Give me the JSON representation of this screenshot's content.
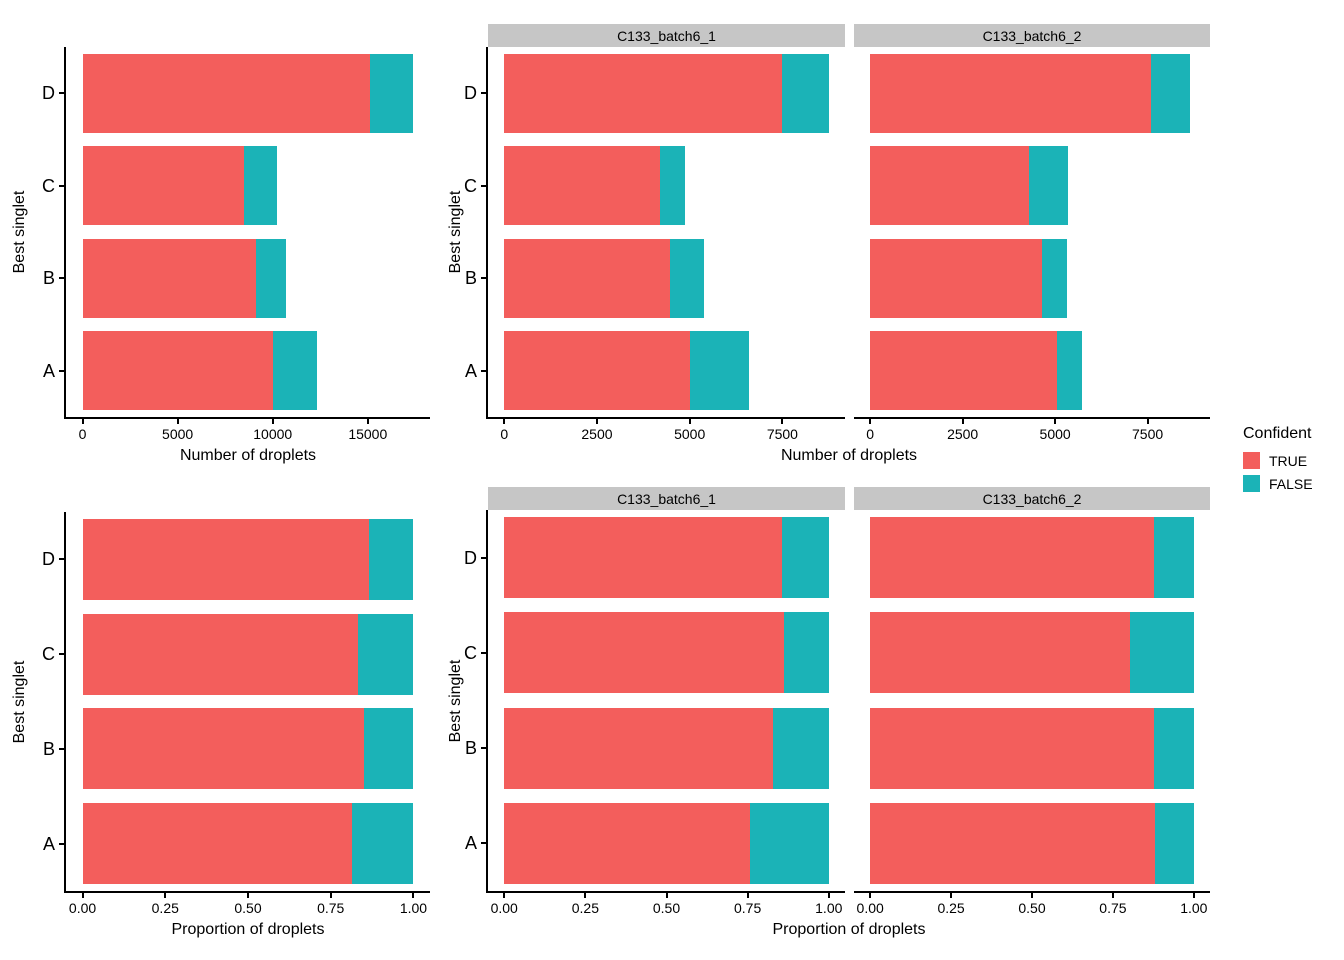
{
  "legend": {
    "title": "Confident",
    "items": [
      {
        "label": "TRUE",
        "color": "#F35E5C"
      },
      {
        "label": "FALSE",
        "color": "#1BB3B7"
      }
    ]
  },
  "colors": {
    "true_fill": "#F35E5C",
    "false_fill": "#1BB3B7",
    "strip_background": "#C6C6C6",
    "axis": "#000000",
    "background": "#FFFFFF"
  },
  "chart_data": [
    {
      "id": "counts-overall",
      "type": "bar",
      "orientation": "horizontal",
      "stacked": true,
      "grid": false,
      "xlabel": "Number of droplets",
      "ylabel": "Best singlet",
      "categories": [
        "D",
        "C",
        "B",
        "A"
      ],
      "xticks": [
        0,
        5000,
        10000,
        15000
      ],
      "xtick_labels": [
        "0",
        "5000",
        "10000",
        "15000"
      ],
      "xlim": [
        0,
        17400
      ],
      "facets": [
        {
          "strip": null,
          "series": [
            {
              "name": "TRUE",
              "values": [
                15090,
                8500,
                9120,
                10040
              ]
            },
            {
              "name": "FALSE",
              "values": [
                2310,
                1720,
                1580,
                2280
              ]
            }
          ]
        }
      ]
    },
    {
      "id": "counts-by-batch",
      "type": "bar",
      "orientation": "horizontal",
      "stacked": true,
      "grid": false,
      "xlabel": "Number of droplets",
      "ylabel": "Best singlet",
      "categories": [
        "D",
        "C",
        "B",
        "A"
      ],
      "xticks": [
        0,
        2500,
        5000,
        7500
      ],
      "xtick_labels": [
        "0",
        "2500",
        "5000",
        "7500"
      ],
      "xlim": [
        0,
        8750
      ],
      "facets": [
        {
          "strip": "C133_batch6_1",
          "series": [
            {
              "name": "TRUE",
              "values": [
                7500,
                4200,
                4470,
                5000
              ]
            },
            {
              "name": "FALSE",
              "values": [
                1250,
                670,
                920,
                1600
              ]
            }
          ]
        },
        {
          "strip": "C133_batch6_2",
          "series": [
            {
              "name": "TRUE",
              "values": [
                7590,
                4300,
                4650,
                5040
              ]
            },
            {
              "name": "FALSE",
              "values": [
                1060,
                1050,
                660,
                680
              ]
            }
          ]
        }
      ]
    },
    {
      "id": "proportion-overall",
      "type": "bar",
      "orientation": "horizontal",
      "stacked": true,
      "grid": false,
      "xlabel": "Proportion of droplets",
      "ylabel": "Best singlet",
      "categories": [
        "D",
        "C",
        "B",
        "A"
      ],
      "xticks": [
        0,
        0.25,
        0.5,
        0.75,
        1
      ],
      "xtick_labels": [
        "0.00",
        "0.25",
        "0.50",
        "0.75",
        "1.00"
      ],
      "xlim": [
        0,
        1
      ],
      "facets": [
        {
          "strip": null,
          "series": [
            {
              "name": "TRUE",
              "values": [
                0.867,
                0.832,
                0.852,
                0.815
              ]
            },
            {
              "name": "FALSE",
              "values": [
                0.133,
                0.168,
                0.148,
                0.185
              ]
            }
          ]
        }
      ]
    },
    {
      "id": "proportion-by-batch",
      "type": "bar",
      "orientation": "horizontal",
      "stacked": true,
      "grid": false,
      "xlabel": "Proportion of droplets",
      "ylabel": "Best singlet",
      "categories": [
        "D",
        "C",
        "B",
        "A"
      ],
      "xticks": [
        0,
        0.25,
        0.5,
        0.75,
        1
      ],
      "xtick_labels": [
        "0.00",
        "0.25",
        "0.50",
        "0.75",
        "1.00"
      ],
      "xlim": [
        0,
        1
      ],
      "facets": [
        {
          "strip": "C133_batch6_1",
          "series": [
            {
              "name": "TRUE",
              "values": [
                0.857,
                0.862,
                0.829,
                0.758
              ]
            },
            {
              "name": "FALSE",
              "values": [
                0.143,
                0.138,
                0.171,
                0.242
              ]
            }
          ]
        },
        {
          "strip": "C133_batch6_2",
          "series": [
            {
              "name": "TRUE",
              "values": [
                0.877,
                0.804,
                0.876,
                0.881
              ]
            },
            {
              "name": "FALSE",
              "values": [
                0.123,
                0.196,
                0.124,
                0.119
              ]
            }
          ]
        }
      ]
    }
  ]
}
